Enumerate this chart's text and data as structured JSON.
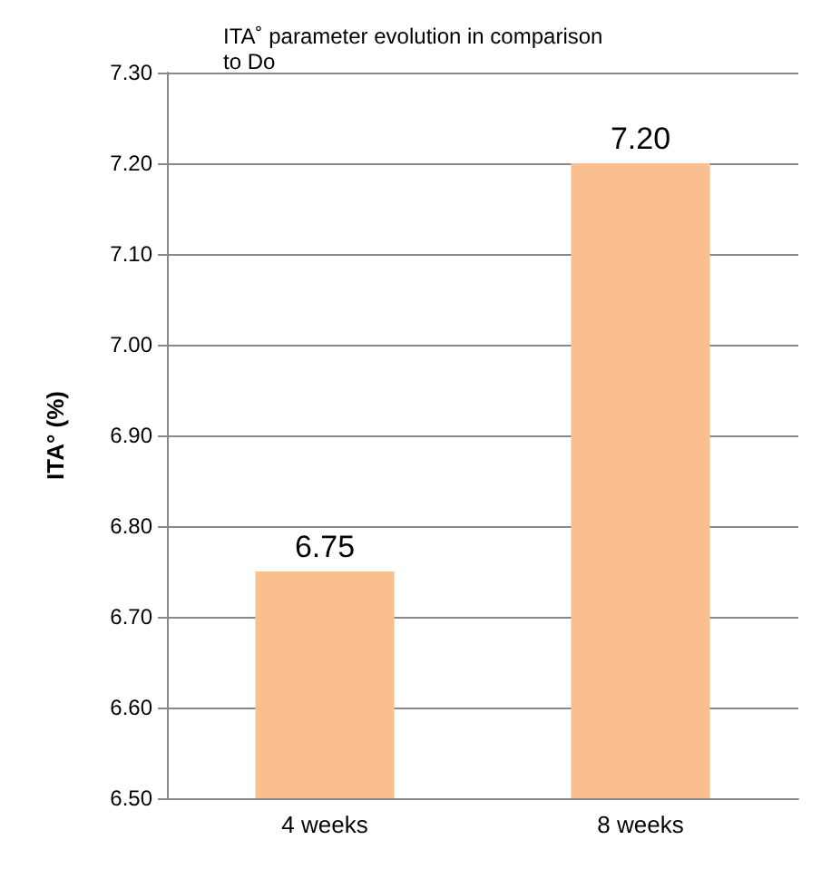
{
  "chart_data": {
    "type": "bar",
    "title": "ITA˚ parameter evolution in comparison to Do",
    "ylabel": "ITA° (%)",
    "categories": [
      "4 weeks",
      "8 weeks"
    ],
    "values": [
      6.75,
      7.2
    ],
    "value_labels": [
      "6.75",
      "7.20"
    ],
    "color": "#f9bf8f",
    "ylim": [
      6.5,
      7.3
    ],
    "yticks": [
      {
        "value": 6.5,
        "label": "6.50"
      },
      {
        "value": 6.6,
        "label": "6.60"
      },
      {
        "value": 6.7,
        "label": "6.70"
      },
      {
        "value": 6.8,
        "label": "6.80"
      },
      {
        "value": 6.9,
        "label": "6.90"
      },
      {
        "value": 7.0,
        "label": "7.00"
      },
      {
        "value": 7.1,
        "label": "7.10"
      },
      {
        "value": 7.2,
        "label": "7.20"
      },
      {
        "value": 7.3,
        "label": "7.30"
      }
    ],
    "grid": "y"
  }
}
